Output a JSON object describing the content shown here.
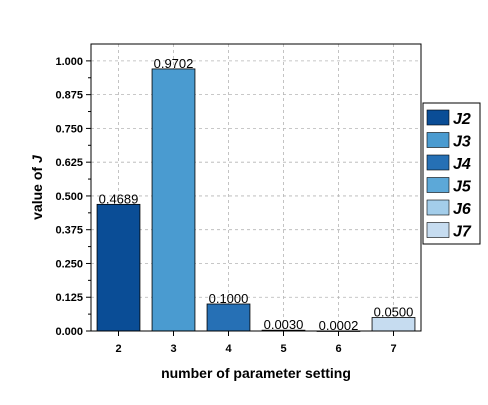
{
  "chart_data": {
    "type": "bar",
    "categories": [
      "2",
      "3",
      "4",
      "5",
      "6",
      "7"
    ],
    "values": [
      0.4689,
      0.9702,
      0.1,
      0.003,
      0.0002,
      0.05
    ],
    "data_labels": [
      "0.4689",
      "0.9702",
      "0.1000",
      "0.0030",
      "0.0002",
      "0.0500"
    ],
    "colors": [
      "#0a4d96",
      "#4a9bd0",
      "#2670b5",
      "#5ca8d8",
      "#a3cdea",
      "#c6dcf0"
    ],
    "xlabel": "number of parameter setting",
    "ylabel": "value of",
    "ylabel_symbol": "J",
    "ylim": [
      0,
      1.0625
    ],
    "yticks": [
      "0.000",
      "0.125",
      "0.250",
      "0.375",
      "0.500",
      "0.625",
      "0.750",
      "0.875",
      "1.000"
    ],
    "grid": true,
    "legend_position": "right",
    "legend": [
      "J2",
      "J3",
      "J4",
      "J5",
      "J6",
      "J7"
    ]
  }
}
